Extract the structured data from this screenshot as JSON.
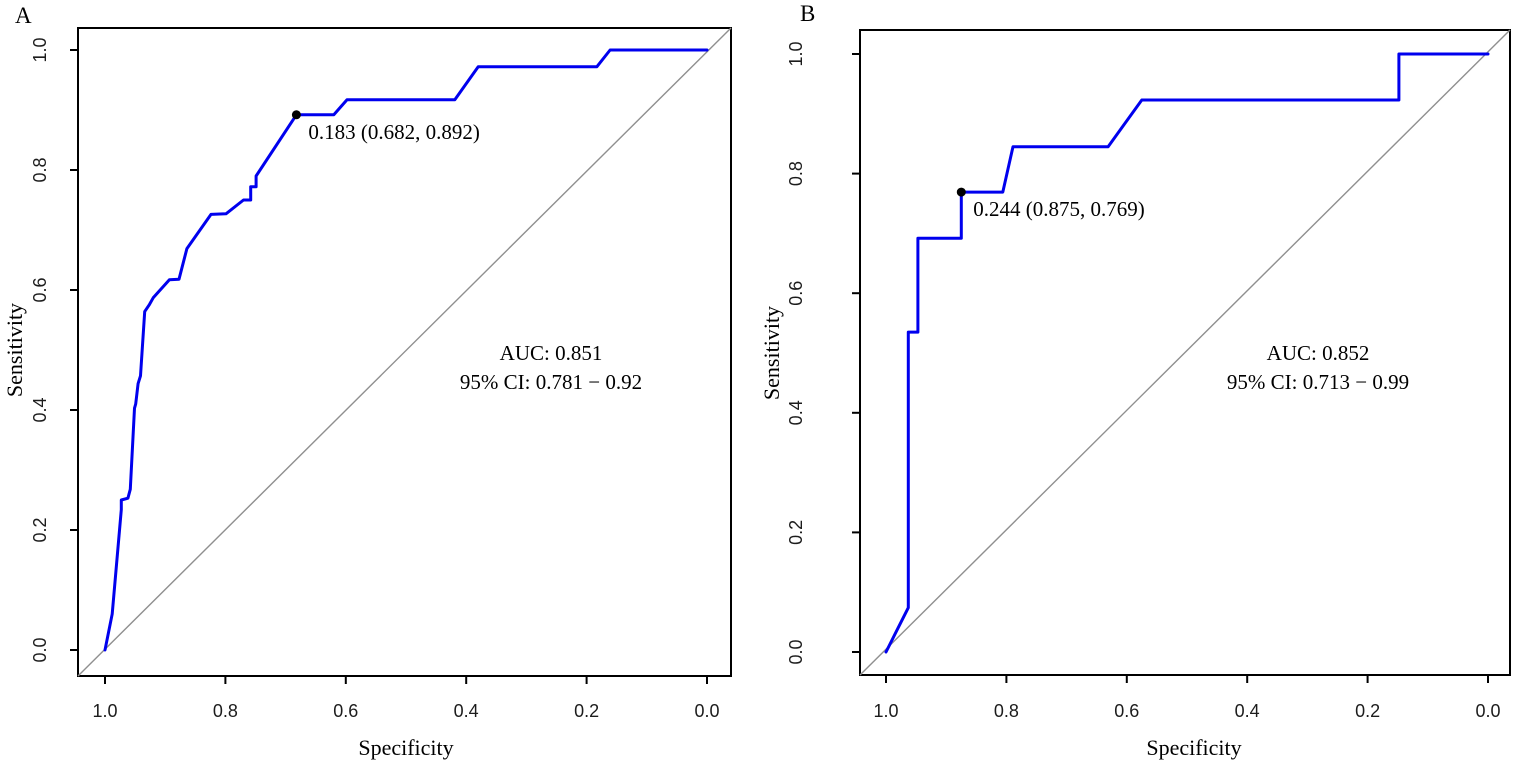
{
  "chart_data": [
    {
      "type": "line",
      "panel_label": "A",
      "xlabel": "Specificity",
      "ylabel": "Sensitivity",
      "x_axis": {
        "reversed": true,
        "range": [
          1.0,
          0.0
        ],
        "tick_values": [
          1.0,
          0.8,
          0.6,
          0.4,
          0.2,
          0.0
        ],
        "tick_labels": [
          "1.0",
          "0.8",
          "0.6",
          "0.4",
          "0.2",
          "0.0"
        ]
      },
      "y_axis": {
        "range": [
          0.0,
          1.0
        ],
        "tick_values": [
          0.0,
          0.2,
          0.4,
          0.6,
          0.8,
          1.0
        ],
        "tick_labels": [
          "0.0",
          "0.2",
          "0.4",
          "0.6",
          "0.8",
          "1.0"
        ]
      },
      "grid": false,
      "series": [
        {
          "name": "ROC curve",
          "color": "#0000EE",
          "points_format": "[specificity, sensitivity]",
          "points": [
            [
              1.0,
              0.0
            ],
            [
              0.988,
              0.06
            ],
            [
              0.973,
              0.234
            ],
            [
              0.973,
              0.25
            ],
            [
              0.962,
              0.253
            ],
            [
              0.958,
              0.268
            ],
            [
              0.951,
              0.403
            ],
            [
              0.949,
              0.41
            ],
            [
              0.945,
              0.444
            ],
            [
              0.941,
              0.457
            ],
            [
              0.934,
              0.564
            ],
            [
              0.926,
              0.576
            ],
            [
              0.92,
              0.587
            ],
            [
              0.893,
              0.617
            ],
            [
              0.877,
              0.618
            ],
            [
              0.864,
              0.669
            ],
            [
              0.824,
              0.726
            ],
            [
              0.799,
              0.727
            ],
            [
              0.77,
              0.75
            ],
            [
              0.758,
              0.75
            ],
            [
              0.758,
              0.772
            ],
            [
              0.749,
              0.772
            ],
            [
              0.749,
              0.79
            ],
            [
              0.682,
              0.892
            ],
            [
              0.62,
              0.892
            ],
            [
              0.598,
              0.917
            ],
            [
              0.419,
              0.917
            ],
            [
              0.38,
              0.972
            ],
            [
              0.183,
              0.972
            ],
            [
              0.161,
              1.0
            ],
            [
              0.0,
              1.0
            ]
          ]
        },
        {
          "name": "reference diagonal",
          "color": "#8F8F8F",
          "points": [
            [
              1.0,
              0.0
            ],
            [
              0.0,
              1.0
            ]
          ]
        }
      ],
      "best_threshold": {
        "label": "0.183 (0.682, 0.892)",
        "threshold": 0.183,
        "specificity": 0.682,
        "sensitivity": 0.892,
        "marker_color": "#000000"
      },
      "auc": {
        "text": "AUC: 0.851",
        "value": 0.851,
        "ci_text": "95% CI: 0.781 − 0.92",
        "ci": [
          0.781,
          0.92
        ]
      }
    },
    {
      "type": "line",
      "panel_label": "B",
      "xlabel": "Specificity",
      "ylabel": "Sensitivity",
      "x_axis": {
        "reversed": true,
        "range": [
          1.0,
          0.0
        ],
        "tick_values": [
          1.0,
          0.8,
          0.6,
          0.4,
          0.2,
          0.0
        ],
        "tick_labels": [
          "1.0",
          "0.8",
          "0.6",
          "0.4",
          "0.2",
          "0.0"
        ]
      },
      "y_axis": {
        "range": [
          0.0,
          1.0
        ],
        "tick_values": [
          0.0,
          0.2,
          0.4,
          0.6,
          0.8,
          1.0
        ],
        "tick_labels": [
          "0.0",
          "0.2",
          "0.4",
          "0.6",
          "0.8",
          "1.0"
        ]
      },
      "grid": false,
      "series": [
        {
          "name": "ROC curve",
          "color": "#0000EE",
          "points_format": "[specificity, sensitivity]",
          "points": [
            [
              1.0,
              0.0
            ],
            [
              0.985,
              0.03
            ],
            [
              0.963,
              0.074
            ],
            [
              0.963,
              0.535
            ],
            [
              0.947,
              0.535
            ],
            [
              0.947,
              0.692
            ],
            [
              0.875,
              0.692
            ],
            [
              0.875,
              0.769
            ],
            [
              0.806,
              0.769
            ],
            [
              0.789,
              0.845
            ],
            [
              0.631,
              0.845
            ],
            [
              0.575,
              0.923
            ],
            [
              0.148,
              0.923
            ],
            [
              0.148,
              1.0
            ],
            [
              0.0,
              1.0
            ]
          ]
        },
        {
          "name": "reference diagonal",
          "color": "#8F8F8F",
          "points": [
            [
              1.0,
              0.0
            ],
            [
              0.0,
              1.0
            ]
          ]
        }
      ],
      "best_threshold": {
        "label": "0.244 (0.875, 0.769)",
        "threshold": 0.244,
        "specificity": 0.875,
        "sensitivity": 0.769,
        "marker_color": "#000000"
      },
      "auc": {
        "text": "AUC: 0.852",
        "value": 0.852,
        "ci_text": "95% CI: 0.713 − 0.99",
        "ci": [
          0.713,
          0.99
        ]
      }
    }
  ]
}
